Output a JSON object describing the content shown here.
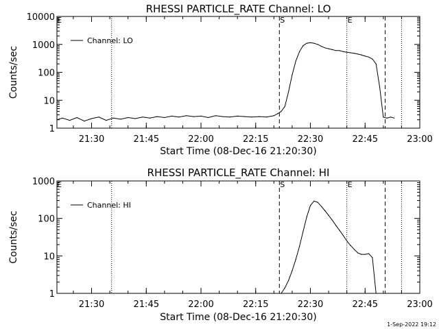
{
  "footer_timestamp": "1-Sep-2022 19:12",
  "chart_data": [
    {
      "type": "line",
      "title": "RHESSI PARTICLE_RATE Channel: LO",
      "xlabel": "Start Time (08-Dec-16 21:20:30)",
      "ylabel": "Counts/sec",
      "yscale": "log",
      "xlim": [
        "21:20:30",
        "23:00:00"
      ],
      "ylim": [
        1,
        10000
      ],
      "x_ticks": [
        "21:30",
        "21:45",
        "22:00",
        "22:15",
        "22:30",
        "22:45",
        "23:00"
      ],
      "y_ticks": [
        "1",
        "10",
        "100",
        "1000",
        "10000"
      ],
      "legend": "top-left",
      "grid": false,
      "series": [
        {
          "name": "Channel: LO",
          "x": [
            "21:20:30",
            "21:22",
            "21:24",
            "21:26",
            "21:28",
            "21:30",
            "21:32",
            "21:34",
            "21:36",
            "21:38",
            "21:40",
            "21:42",
            "21:44",
            "21:46",
            "21:48",
            "21:50",
            "21:52",
            "21:54",
            "21:56",
            "21:58",
            "22:00",
            "22:02",
            "22:04",
            "22:06",
            "22:08",
            "22:10",
            "22:12",
            "22:14",
            "22:16",
            "22:18",
            "22:20",
            "22:21",
            "22:22",
            "22:23",
            "22:24",
            "22:25",
            "22:26",
            "22:27",
            "22:28",
            "22:29",
            "22:30",
            "22:31",
            "22:32",
            "22:33",
            "22:34",
            "22:35",
            "22:36",
            "22:37",
            "22:38",
            "22:39",
            "22:40",
            "22:41",
            "22:42",
            "22:43",
            "22:44",
            "22:45",
            "22:46",
            "22:47",
            "22:48",
            "22:49",
            "22:50",
            "22:51",
            "22:52",
            "22:53"
          ],
          "y": [
            2,
            2.3,
            1.9,
            2.4,
            1.8,
            2.2,
            2.5,
            1.9,
            2.3,
            2.1,
            2.4,
            2.2,
            2.5,
            2.3,
            2.6,
            2.4,
            2.7,
            2.5,
            2.8,
            2.6,
            2.7,
            2.4,
            2.8,
            2.6,
            2.5,
            2.7,
            2.6,
            2.5,
            2.6,
            2.5,
            2.8,
            3.3,
            4,
            6,
            20,
            80,
            250,
            550,
            900,
            1100,
            1150,
            1100,
            1000,
            850,
            750,
            700,
            650,
            600,
            600,
            550,
            520,
            500,
            480,
            450,
            420,
            380,
            350,
            300,
            200,
            30,
            2.5,
            2.3,
            2.5,
            2.3
          ]
        }
      ],
      "markers": [
        {
          "x": "21:35:30",
          "style": "dotted",
          "label": ""
        },
        {
          "x": "22:21:30",
          "style": "dashed",
          "label": "S"
        },
        {
          "x": "22:40:00",
          "style": "dotted",
          "label": "E"
        },
        {
          "x": "22:50:30",
          "style": "dashed",
          "label": ""
        },
        {
          "x": "22:55:00",
          "style": "dotted",
          "label": ""
        }
      ],
      "top_left_marker": "E"
    },
    {
      "type": "line",
      "title": "RHESSI PARTICLE_RATE Channel: HI",
      "xlabel": "Start Time (08-Dec-16 21:20:30)",
      "ylabel": "Counts/sec",
      "yscale": "log",
      "xlim": [
        "21:20:30",
        "23:00:00"
      ],
      "ylim": [
        1,
        1000
      ],
      "x_ticks": [
        "21:30",
        "21:45",
        "22:00",
        "22:15",
        "22:30",
        "22:45",
        "23:00"
      ],
      "y_ticks": [
        "1",
        "10",
        "100",
        "1000"
      ],
      "legend": "top-left",
      "grid": false,
      "series": [
        {
          "name": "Channel: HI",
          "x": [
            "22:22",
            "22:23",
            "22:24",
            "22:25",
            "22:26",
            "22:27",
            "22:28",
            "22:29",
            "22:30",
            "22:31",
            "22:32",
            "22:33",
            "22:34",
            "22:35",
            "22:36",
            "22:37",
            "22:38",
            "22:39",
            "22:40",
            "22:41",
            "22:42",
            "22:43",
            "22:44",
            "22:45",
            "22:46",
            "22:47",
            "22:48"
          ],
          "y": [
            1,
            1.4,
            2.2,
            4,
            8,
            18,
            45,
            110,
            220,
            290,
            270,
            210,
            160,
            120,
            90,
            65,
            48,
            35,
            25,
            19,
            15,
            12,
            11,
            11,
            11.5,
            9,
            1
          ]
        }
      ],
      "markers": [
        {
          "x": "21:35:30",
          "style": "dotted",
          "label": ""
        },
        {
          "x": "22:21:30",
          "style": "dashed",
          "label": "S"
        },
        {
          "x": "22:40:00",
          "style": "dotted",
          "label": "E"
        },
        {
          "x": "22:50:30",
          "style": "dashed",
          "label": ""
        },
        {
          "x": "22:55:00",
          "style": "dotted",
          "label": ""
        }
      ],
      "top_left_marker": "E"
    }
  ]
}
